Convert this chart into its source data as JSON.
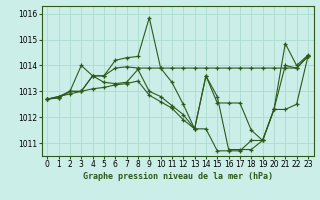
{
  "title": "Graphe pression niveau de la mer (hPa)",
  "background_color": "#cceee8",
  "grid_color": "#aaddcc",
  "line_color": "#2d5a1b",
  "marker_color": "#2d5a1b",
  "ylim": [
    1010.5,
    1016.3
  ],
  "xlim": [
    -0.5,
    23.5
  ],
  "yticks": [
    1011,
    1012,
    1013,
    1014,
    1015,
    1016
  ],
  "xticks": [
    0,
    1,
    2,
    3,
    4,
    5,
    6,
    7,
    8,
    9,
    10,
    11,
    12,
    13,
    14,
    15,
    16,
    17,
    18,
    19,
    20,
    21,
    22,
    23
  ],
  "series": [
    {
      "x": [
        0,
        1,
        2,
        3,
        4,
        5,
        6,
        7,
        8,
        9,
        10,
        11,
        12,
        13,
        14,
        15,
        16,
        17,
        18,
        19,
        20,
        21,
        22,
        23
      ],
      "y": [
        1012.7,
        1012.75,
        1013.0,
        1014.0,
        1013.6,
        1013.6,
        1014.2,
        1014.3,
        1014.35,
        1015.85,
        1013.9,
        1013.35,
        1012.5,
        1011.55,
        1013.6,
        1012.8,
        1010.75,
        1010.75,
        1010.75,
        1011.1,
        1012.3,
        1014.85,
        1014.0,
        1014.4
      ]
    },
    {
      "x": [
        0,
        1,
        2,
        3,
        4,
        5,
        6,
        7,
        8,
        9,
        10,
        11,
        12,
        13,
        14,
        15,
        16,
        17,
        18,
        19,
        20,
        21,
        22,
        23
      ],
      "y": [
        1012.7,
        1012.75,
        1013.0,
        1013.0,
        1013.6,
        1013.6,
        1013.9,
        1013.95,
        1013.9,
        1013.9,
        1013.9,
        1013.9,
        1013.9,
        1013.9,
        1013.9,
        1013.9,
        1013.9,
        1013.9,
        1013.9,
        1013.9,
        1013.9,
        1013.9,
        1013.9,
        1014.35
      ]
    },
    {
      "x": [
        0,
        1,
        2,
        3,
        4,
        5,
        6,
        7,
        8,
        9,
        10,
        11,
        12,
        13,
        14,
        15,
        16,
        17,
        18,
        19,
        20,
        21,
        22,
        23
      ],
      "y": [
        1012.7,
        1012.8,
        1013.0,
        1013.0,
        1013.6,
        1013.35,
        1013.3,
        1013.35,
        1013.85,
        1013.0,
        1012.8,
        1012.45,
        1012.1,
        1011.55,
        1013.6,
        1012.55,
        1012.55,
        1012.55,
        1011.5,
        1011.1,
        1012.3,
        1014.0,
        1013.9,
        1014.35
      ]
    },
    {
      "x": [
        0,
        1,
        2,
        3,
        4,
        5,
        6,
        7,
        8,
        9,
        10,
        11,
        12,
        13,
        14,
        15,
        16,
        17,
        18,
        19,
        20,
        21,
        22,
        23
      ],
      "y": [
        1012.7,
        1012.8,
        1012.9,
        1013.0,
        1013.1,
        1013.15,
        1013.25,
        1013.3,
        1013.4,
        1012.85,
        1012.6,
        1012.35,
        1011.9,
        1011.55,
        1011.55,
        1010.7,
        1010.7,
        1010.7,
        1011.1,
        1011.1,
        1012.3,
        1012.3,
        1012.5,
        1014.35
      ]
    }
  ]
}
